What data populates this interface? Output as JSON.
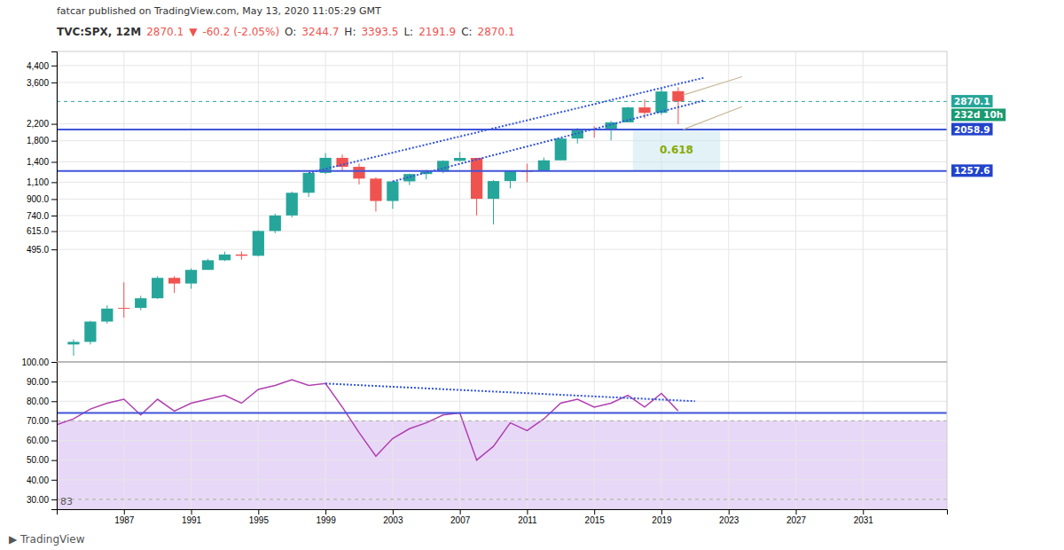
{
  "chart_data": [
    {
      "type": "candlestick",
      "title": "fatcar published on TradingView.com, May 13, 2020 11:05:29 GMT",
      "subtitle": [
        {
          "text": "TVC:SPX, 12M",
          "color": "#333333"
        },
        {
          "text": "2870.1",
          "color": "#ef5350"
        },
        {
          "text": "▼",
          "color": "#ef5350"
        },
        {
          "text": "-60.2 (-2.05%)",
          "color": "#ef5350"
        },
        {
          "text": "O:",
          "color": "#333333"
        },
        {
          "text": "3244.7",
          "color": "#ef5350"
        },
        {
          "text": "H:",
          "color": "#333333"
        },
        {
          "text": "3393.5",
          "color": "#ef5350"
        },
        {
          "text": "L:",
          "color": "#333333"
        },
        {
          "text": "2191.9",
          "color": "#ef5350"
        },
        {
          "text": "C:",
          "color": "#333333"
        },
        {
          "text": "2870.1",
          "color": "#ef5350"
        }
      ],
      "x": [
        1984,
        1985,
        1986,
        1987,
        1988,
        1989,
        1990,
        1991,
        1992,
        1993,
        1994,
        1995,
        1996,
        1997,
        1998,
        1999,
        2000,
        2001,
        2002,
        2003,
        2004,
        2005,
        2006,
        2007,
        2008,
        2009,
        2010,
        2011,
        2012,
        2013,
        2014,
        2015,
        2016,
        2017,
        2018,
        2019,
        2020
      ],
      "open": [
        160,
        165,
        210,
        245,
        247,
        277,
        353,
        330,
        388,
        435,
        466,
        459,
        616,
        741,
        970,
        1229,
        1469,
        1320,
        1148,
        880,
        1111,
        1212,
        1248,
        1418,
        1468,
        903,
        1115,
        1257,
        1257,
        1426,
        1848,
        2059,
        2044,
        2239,
        2674,
        2507,
        3244
      ],
      "high": [
        170,
        212,
        255,
        335,
        285,
        360,
        360,
        395,
        442,
        482,
        483,
        621,
        757,
        983,
        1190,
        1553,
        1527,
        1373,
        1165,
        1111,
        1217,
        1273,
        1427,
        1576,
        1471,
        1127,
        1259,
        1370,
        1474,
        1849,
        2093,
        2135,
        2278,
        2694,
        2941,
        3394,
        3394
      ],
      "low": [
        140,
        160,
        205,
        220,
        240,
        275,
        295,
        310,
        394,
        431,
        438,
        456,
        600,
        723,
        923,
        1212,
        1264,
        1071,
        776,
        801,
        1063,
        1138,
        1224,
        1407,
        741,
        666,
        1022,
        1099,
        1278,
        1426,
        1741,
        1867,
        1810,
        2245,
        2346,
        2447,
        2192
      ],
      "close": [
        165,
        210,
        245,
        247,
        277,
        353,
        330,
        388,
        435,
        466,
        459,
        616,
        741,
        970,
        1229,
        1469,
        1320,
        1148,
        880,
        1111,
        1212,
        1248,
        1418,
        1468,
        903,
        1115,
        1257,
        1257,
        1426,
        1848,
        2059,
        2044,
        2239,
        2674,
        2507,
        3231,
        2870
      ],
      "colors": [
        "#26a69a",
        "#26a69a",
        "#26a69a",
        "#ef5350",
        "#26a69a",
        "#26a69a",
        "#ef5350",
        "#26a69a",
        "#26a69a",
        "#26a69a",
        "#ef5350",
        "#26a69a",
        "#26a69a",
        "#26a69a",
        "#26a69a",
        "#26a69a",
        "#ef5350",
        "#ef5350",
        "#ef5350",
        "#26a69a",
        "#26a69a",
        "#26a69a",
        "#26a69a",
        "#26a69a",
        "#ef5350",
        "#26a69a",
        "#26a69a",
        "#ef5350",
        "#26a69a",
        "#26a69a",
        "#26a69a",
        "#ef5350",
        "#26a69a",
        "#26a69a",
        "#ef5350",
        "#26a69a",
        "#ef5350"
      ],
      "xlim": [
        1983,
        2036
      ],
      "xticks": [
        1987,
        1991,
        1995,
        1999,
        2003,
        2007,
        2011,
        2015,
        2019,
        2023,
        2027,
        2031
      ],
      "ylim": [
        130,
        5200
      ],
      "yticks": [
        {
          "value": 4400,
          "label": "4,400"
        },
        {
          "value": 3600,
          "label": "3,600"
        },
        {
          "value": 2200,
          "label": "2,200"
        },
        {
          "value": 1800,
          "label": "1,800"
        },
        {
          "value": 1400,
          "label": "1,400"
        },
        {
          "value": 1100,
          "label": "1,100"
        },
        {
          "value": 900,
          "label": "900.0"
        },
        {
          "value": 740,
          "label": "740.0"
        },
        {
          "value": 615,
          "label": "615.0"
        },
        {
          "value": 495,
          "label": "495.0"
        }
      ],
      "log": "y",
      "grid": true,
      "tick_labels": "y",
      "hlines": [
        {
          "value": 2058.9,
          "color": "#4055d8",
          "line_style": "solid"
        },
        {
          "value": 1257.6,
          "color": "#4055d8",
          "line_style": "solid"
        },
        {
          "value": 2870.1,
          "color": "#26a69a",
          "line_style": "dashed"
        }
      ],
      "series": [
        {
          "type": "line",
          "x": [
            1998,
            2021.5
          ],
          "values": [
            1229,
            3800
          ],
          "color": "#3355dd",
          "line_style": "dotted"
        },
        {
          "type": "line",
          "x": [
            2003,
            2021.5
          ],
          "values": [
            1111,
            2900
          ],
          "color": "#3355dd",
          "line_style": "dotted"
        },
        {
          "type": "line",
          "x": [
            2020.3,
            2023.8
          ],
          "values": [
            3100,
            3850
          ],
          "color": "#c8b898",
          "line_style": "solid"
        },
        {
          "type": "line",
          "x": [
            2020.3,
            2023.8
          ],
          "values": [
            2058.9,
            2700
          ],
          "color": "#c8b898",
          "line_style": "solid"
        }
      ],
      "fib_box": {
        "x": [
          2017.3,
          2022.5
        ],
        "y": [
          1257.6,
          2058.9
        ],
        "color": "#cce8f0",
        "label": "0.618",
        "label_color": "#88aa00"
      },
      "annotations": [
        {
          "text": "2870.1",
          "y": 2870.1,
          "color": "#26a69a"
        },
        {
          "text": "232d 10h",
          "y": 2440,
          "color": "#1a9a70"
        },
        {
          "text": "2058.9",
          "y": 2058.9,
          "color": "#2244cc"
        },
        {
          "text": "1257.6",
          "y": 1257.6,
          "color": "#2244cc"
        }
      ]
    },
    {
      "type": "line",
      "x": [
        1983,
        1984,
        1985,
        1986,
        1987,
        1988,
        1989,
        1990,
        1991,
        1992,
        1993,
        1994,
        1995,
        1996,
        1997,
        1998,
        1999,
        2000,
        2001,
        2002,
        2003,
        2004,
        2005,
        2006,
        2007,
        2008,
        2009,
        2010,
        2011,
        2012,
        2013,
        2014,
        2015,
        2016,
        2017,
        2018,
        2019,
        2020
      ],
      "values": [
        68,
        71,
        76,
        79,
        81,
        73,
        81,
        75,
        79,
        81,
        83,
        79,
        86,
        88,
        91,
        88,
        89,
        77,
        64,
        52,
        61,
        66,
        69,
        73,
        74,
        50,
        57,
        69,
        65,
        71,
        79,
        81,
        77,
        79,
        83,
        77,
        84,
        75
      ],
      "color": "#b040b0",
      "xlim": [
        1983,
        2036
      ],
      "xticks": [
        1987,
        1991,
        1995,
        1999,
        2003,
        2007,
        2011,
        2015,
        2019,
        2023,
        2027,
        2031
      ],
      "ylim": [
        25,
        100
      ],
      "yticks": [
        {
          "value": 100,
          "label": "100.00"
        },
        {
          "value": 90,
          "label": "90.00"
        },
        {
          "value": 80,
          "label": "80.00"
        },
        {
          "value": 70,
          "label": "70.00"
        },
        {
          "value": 60,
          "label": "60.00"
        },
        {
          "value": 50,
          "label": "50.00"
        },
        {
          "value": 40,
          "label": "40.00"
        },
        {
          "value": 30,
          "label": "30.00"
        }
      ],
      "grid": true,
      "bands": [
        {
          "y": [
            25,
            70
          ],
          "color": "#e8d8f8"
        }
      ],
      "hlines": [
        {
          "value": 70,
          "color": "#aaaaaa",
          "line_style": "dashed"
        },
        {
          "value": 30,
          "color": "#aaaaaa",
          "line_style": "dashed"
        },
        {
          "value": 74,
          "color": "#4055d8",
          "line_style": "solid"
        }
      ],
      "series": [
        {
          "type": "line",
          "x": [
            1999,
            2021
          ],
          "values": [
            89,
            80
          ],
          "color": "#3355dd",
          "line_style": "dotted"
        }
      ],
      "annotations": [
        {
          "text": "83"
        },
        {
          "text": "▶ TradingView"
        }
      ]
    }
  ]
}
